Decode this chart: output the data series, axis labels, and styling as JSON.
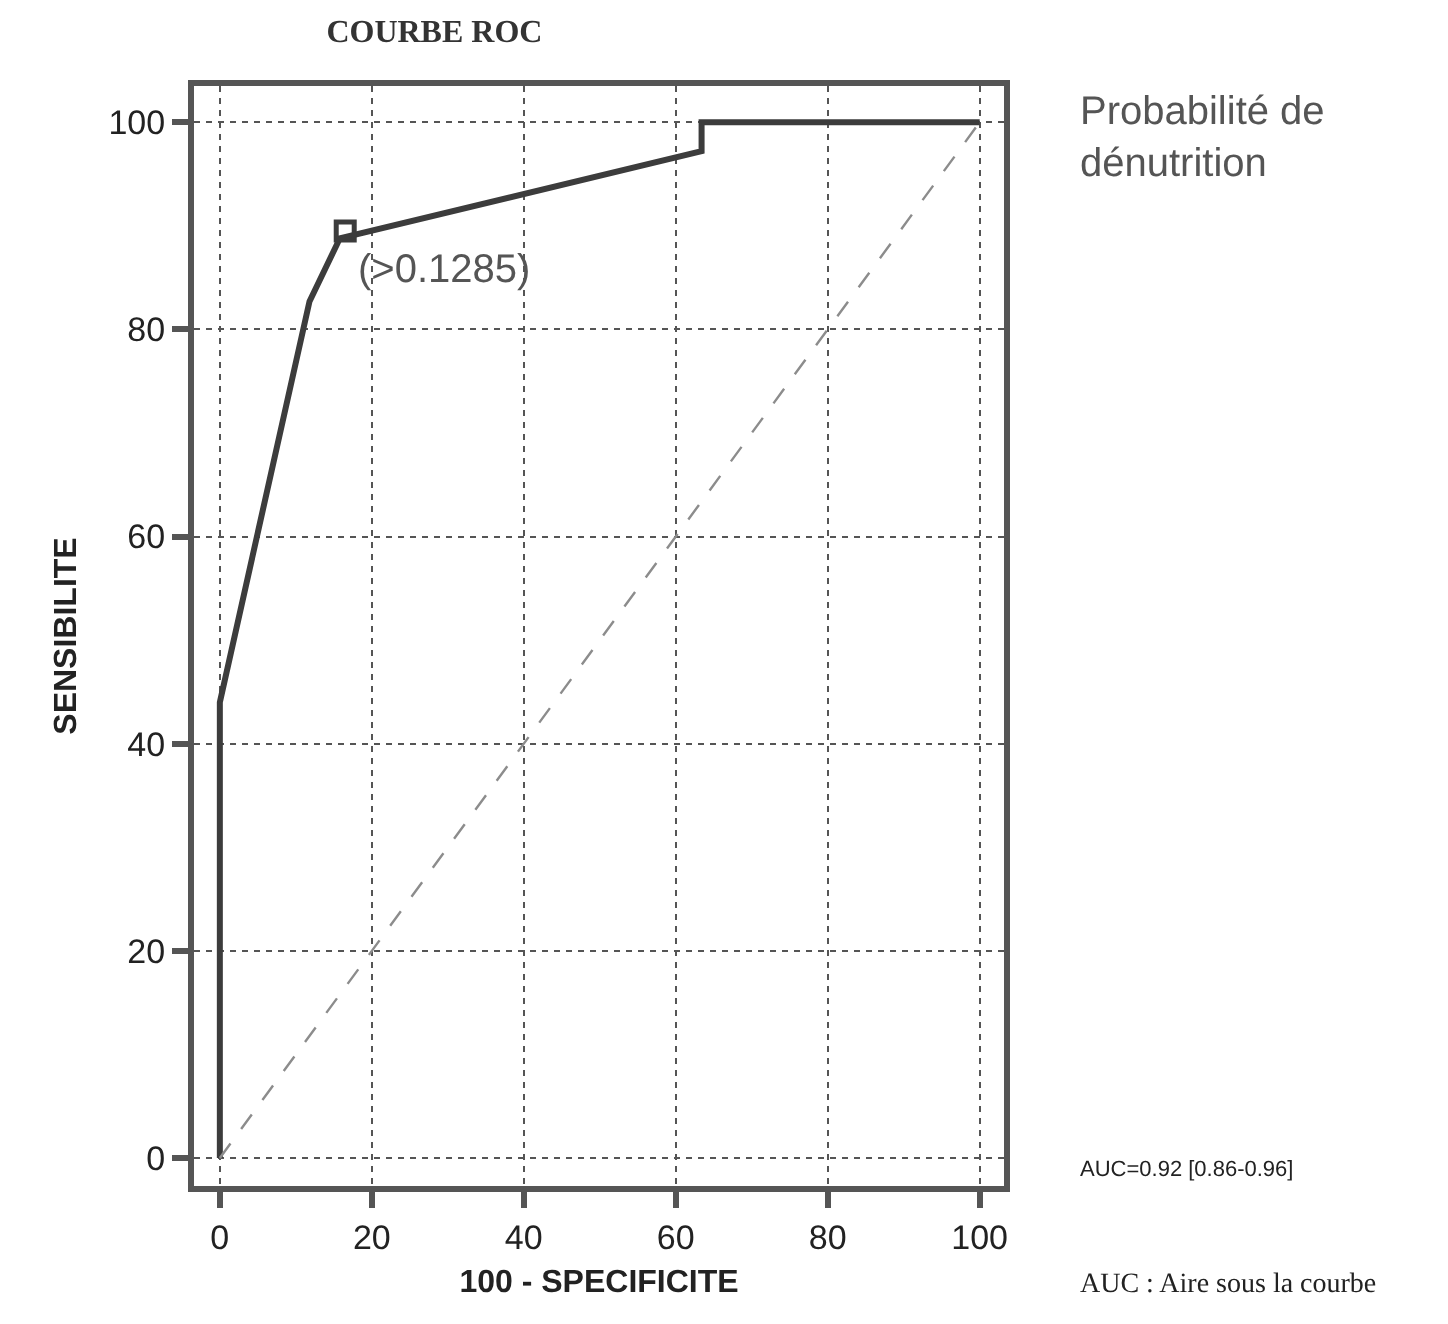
{
  "chart_data": {
    "type": "line",
    "title": "COURBE ROC",
    "xlabel": "100 - SPECIFICITE",
    "ylabel": "SENSIBILITE",
    "xlim": [
      -3.4,
      103.2
    ],
    "ylim": [
      -2.7,
      103.5
    ],
    "xticks": [
      0,
      20,
      40,
      60,
      80,
      100
    ],
    "yticks": [
      0,
      20,
      40,
      60,
      80,
      100
    ],
    "grid": true,
    "series": [
      {
        "x": [
          0,
          0,
          11.8,
          15.8,
          63.4,
          63.4,
          100
        ],
        "values": [
          0,
          44,
          82.7,
          88.8,
          97.2,
          100,
          100
        ],
        "color": "#3c3c3c",
        "marker": "none",
        "line_style": "solid"
      },
      {
        "x": [
          0,
          100
        ],
        "values": [
          0,
          100
        ],
        "color": "#8c8c8c",
        "marker": "none",
        "line_style": "dashed"
      },
      {
        "type": "scatter",
        "x": [
          16.5
        ],
        "values": [
          89.5
        ],
        "color": "#3c3c3c",
        "marker": "square"
      }
    ],
    "annotations": [
      {
        "text": "(>0.1285)",
        "x": 16.5,
        "y": 89.5
      },
      "Probabilité de dénutrition",
      "AUC=0.92 [0.86-0.96]",
      "AUC : Aire sous la courbe"
    ]
  }
}
